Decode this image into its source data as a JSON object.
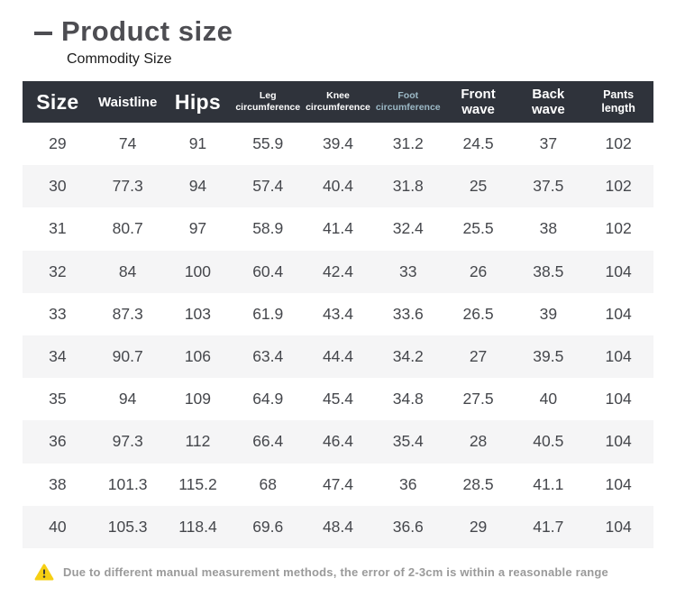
{
  "page": {
    "title": "Product size",
    "subtitle": "Commodity Size"
  },
  "colors": {
    "header_bg": "#2f333b",
    "header_text": "#ffffff",
    "foot_column_accent": "#9cb9c6",
    "row_alt_bg": "#f5f5f6",
    "body_text": "#45474c",
    "title_color": "#4d4d52",
    "note_text": "#9a9a9a",
    "warning_yellow": "#f6cf13"
  },
  "table": {
    "headers": [
      "Size",
      "Waistline",
      "Hips",
      "Leg circumference",
      "Knee circumference",
      "Foot circumference",
      "Front wave",
      "Back wave",
      "Pants length"
    ],
    "rows": [
      [
        "29",
        "74",
        "91",
        "55.9",
        "39.4",
        "31.2",
        "24.5",
        "37",
        "102"
      ],
      [
        "30",
        "77.3",
        "94",
        "57.4",
        "40.4",
        "31.8",
        "25",
        "37.5",
        "102"
      ],
      [
        "31",
        "80.7",
        "97",
        "58.9",
        "41.4",
        "32.4",
        "25.5",
        "38",
        "102"
      ],
      [
        "32",
        "84",
        "100",
        "60.4",
        "42.4",
        "33",
        "26",
        "38.5",
        "104"
      ],
      [
        "33",
        "87.3",
        "103",
        "61.9",
        "43.4",
        "33.6",
        "26.5",
        "39",
        "104"
      ],
      [
        "34",
        "90.7",
        "106",
        "63.4",
        "44.4",
        "34.2",
        "27",
        "39.5",
        "104"
      ],
      [
        "35",
        "94",
        "109",
        "64.9",
        "45.4",
        "34.8",
        "27.5",
        "40",
        "104"
      ],
      [
        "36",
        "97.3",
        "112",
        "66.4",
        "46.4",
        "35.4",
        "28",
        "40.5",
        "104"
      ],
      [
        "38",
        "101.3",
        "115.2",
        "68",
        "47.4",
        "36",
        "28.5",
        "41.1",
        "104"
      ],
      [
        "40",
        "105.3",
        "118.4",
        "69.6",
        "48.4",
        "36.6",
        "29",
        "41.7",
        "104"
      ]
    ]
  },
  "note": {
    "text": "Due to different manual measurement methods, the error of 2-3cm is within a reasonable range"
  }
}
